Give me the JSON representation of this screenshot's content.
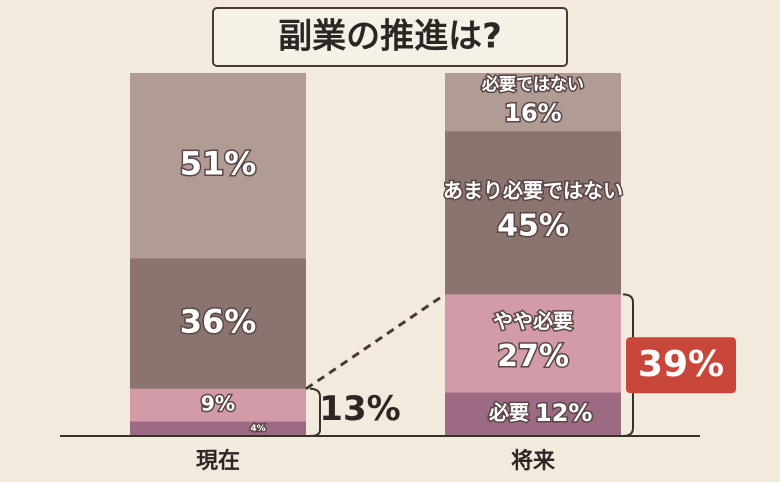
{
  "chart_data": {
    "type": "stacked-bar",
    "title": "副業の推進は?",
    "categories": [
      "現在",
      "将来"
    ],
    "series": [
      {
        "name": "必要",
        "color": "#9c6b83",
        "values": [
          4,
          12
        ],
        "value_labels": [
          "4%",
          "12%"
        ]
      },
      {
        "name": "やや必要",
        "color": "#d39aa8",
        "values": [
          9,
          27
        ],
        "value_labels": [
          "9%",
          "27%"
        ]
      },
      {
        "name": "あまり必要ではない",
        "color": "#8b7470",
        "values": [
          36,
          45
        ],
        "value_labels": [
          "36%",
          "45%"
        ]
      },
      {
        "name": "必要ではない",
        "color": "#b19b95",
        "values": [
          51,
          16
        ],
        "value_labels": [
          "51%",
          "16%"
        ]
      }
    ],
    "annotations": [
      "13%",
      "39%"
    ]
  }
}
